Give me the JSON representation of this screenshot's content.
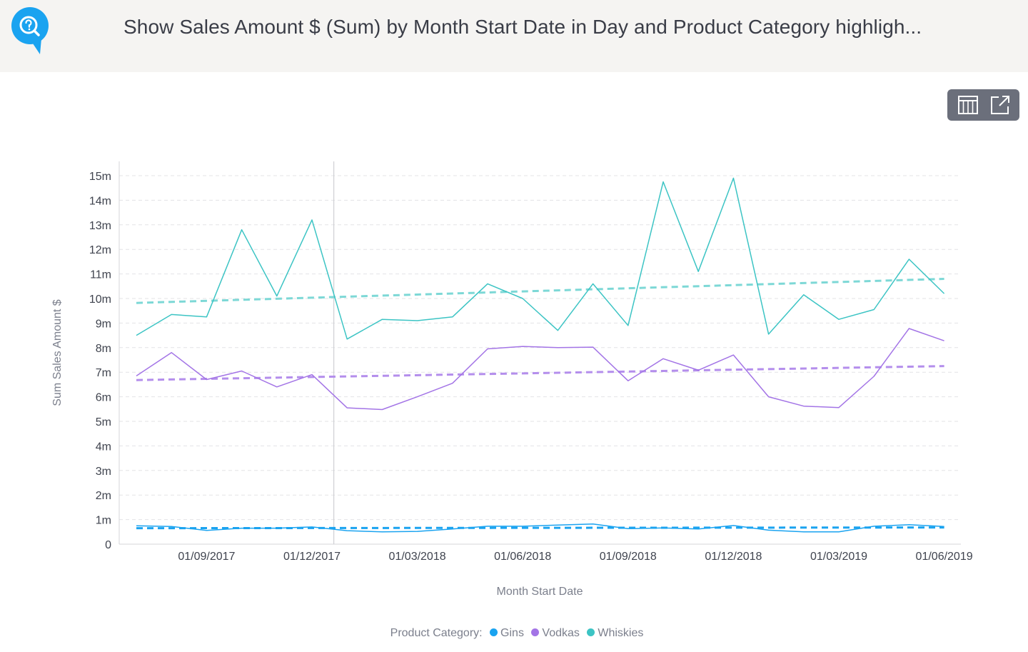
{
  "header": {
    "title": "Show Sales Amount $ (Sum) by Month Start Date in Day and Product Category highligh..."
  },
  "toolbar": {
    "table_icon": "table-view-icon",
    "open_icon": "open-external-icon"
  },
  "colors": {
    "header_bg": "#f5f4f2",
    "logo": "#1aa3f0",
    "gins": "#1aa3f0",
    "vodkas": "#a374e6",
    "whiskies": "#3cc4c4",
    "whiskies_trend": "#7dd8d6",
    "vodkas_trend": "#b48eec"
  },
  "chart_data": {
    "type": "line",
    "xlabel": "Month Start Date",
    "ylabel": "Sum Sales Amount $",
    "ylim": [
      0,
      15000000
    ],
    "yticks": [
      {
        "value": 0,
        "label": "0"
      },
      {
        "value": 1000000,
        "label": "1m"
      },
      {
        "value": 2000000,
        "label": "2m"
      },
      {
        "value": 3000000,
        "label": "3m"
      },
      {
        "value": 4000000,
        "label": "4m"
      },
      {
        "value": 5000000,
        "label": "5m"
      },
      {
        "value": 6000000,
        "label": "6m"
      },
      {
        "value": 7000000,
        "label": "7m"
      },
      {
        "value": 8000000,
        "label": "8m"
      },
      {
        "value": 9000000,
        "label": "9m"
      },
      {
        "value": 10000000,
        "label": "10m"
      },
      {
        "value": 11000000,
        "label": "11m"
      },
      {
        "value": 12000000,
        "label": "12m"
      },
      {
        "value": 13000000,
        "label": "13m"
      },
      {
        "value": 14000000,
        "label": "14m"
      },
      {
        "value": 15000000,
        "label": "15m"
      }
    ],
    "xticks": [
      "01/09/2017",
      "01/12/2017",
      "01/03/2018",
      "01/06/2018",
      "01/09/2018",
      "01/12/2018",
      "01/03/2019",
      "01/06/2019"
    ],
    "x": [
      "01/07/2017",
      "01/08/2017",
      "01/09/2017",
      "01/10/2017",
      "01/11/2017",
      "01/12/2017",
      "01/01/2018",
      "01/02/2018",
      "01/03/2018",
      "01/04/2018",
      "01/05/2018",
      "01/06/2018",
      "01/07/2018",
      "01/08/2018",
      "01/09/2018",
      "01/10/2018",
      "01/11/2018",
      "01/12/2018",
      "01/01/2019",
      "01/02/2019",
      "01/03/2019",
      "01/04/2019",
      "01/05/2019",
      "01/06/2019"
    ],
    "highlight_x": "01/01/2018",
    "series": [
      {
        "name": "Gins",
        "color": "#1aa3f0",
        "values": [
          750000,
          720000,
          560000,
          650000,
          650000,
          700000,
          550000,
          500000,
          520000,
          620000,
          730000,
          730000,
          780000,
          820000,
          630000,
          660000,
          620000,
          760000,
          570000,
          500000,
          500000,
          730000,
          790000,
          720000
        ],
        "trend": [
          650000,
          680000
        ]
      },
      {
        "name": "Vodkas",
        "color": "#a374e6",
        "values": [
          6850000,
          7800000,
          6700000,
          7050000,
          6400000,
          6900000,
          5550000,
          5480000,
          6000000,
          6550000,
          7950000,
          8050000,
          8000000,
          8020000,
          6650000,
          7550000,
          7080000,
          7700000,
          6000000,
          5620000,
          5560000,
          6830000,
          8780000,
          8280000
        ],
        "trend": [
          6680000,
          7250000
        ]
      },
      {
        "name": "Whiskies",
        "color": "#3cc4c4",
        "values": [
          8500000,
          9350000,
          9250000,
          12800000,
          10100000,
          13200000,
          8350000,
          9150000,
          9100000,
          9250000,
          10600000,
          10000000,
          8700000,
          10600000,
          8900000,
          14750000,
          11100000,
          14900000,
          8550000,
          10150000,
          9150000,
          9550000,
          11600000,
          10200000
        ],
        "trend": [
          9820000,
          10800000
        ]
      }
    ],
    "legend": {
      "title": "Product Category:",
      "placement": "bottom-center",
      "items": [
        "Gins",
        "Vodkas",
        "Whiskies"
      ]
    },
    "grid": true
  }
}
